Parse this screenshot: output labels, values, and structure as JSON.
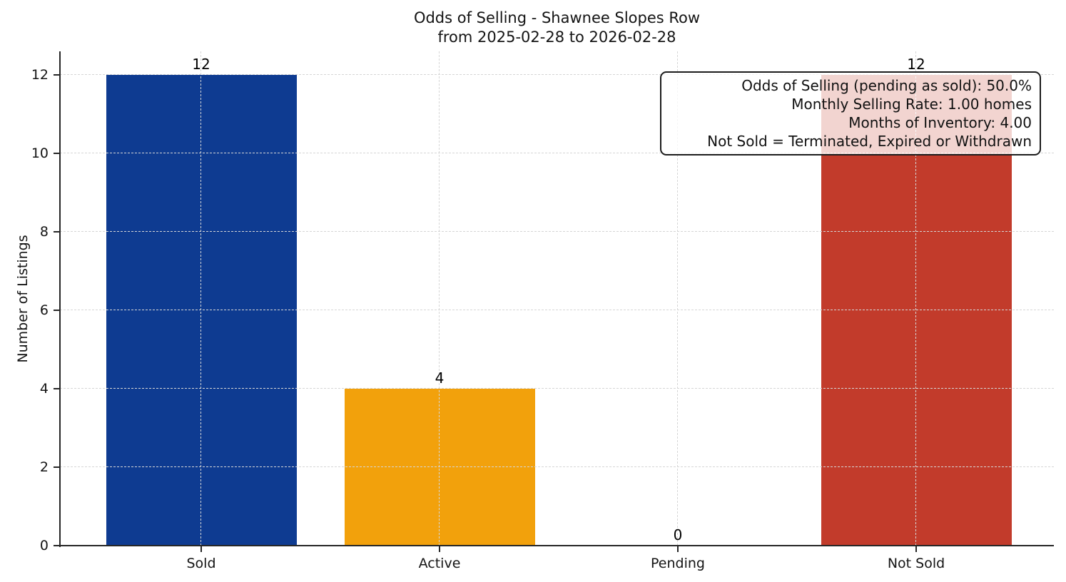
{
  "title": "Odds of Selling - Shawnee Slopes Row",
  "subtitle": "from 2025-02-28 to 2026-02-28",
  "chart_data": {
    "type": "bar",
    "categories": [
      "Sold",
      "Active",
      "Pending",
      "Not Sold"
    ],
    "values": [
      12,
      4,
      0,
      12
    ],
    "value_labels": [
      "12",
      "4",
      "0",
      "12"
    ],
    "bar_colors": [
      "#0e3b91",
      "#f2a10c",
      null,
      "#c23b2b"
    ],
    "title": "Odds of Selling - Shawnee Slopes Row",
    "subtitle": "from 2025-02-28 to 2026-02-28",
    "xlabel": "",
    "ylabel": "Number of Listings",
    "yticks": [
      0,
      2,
      4,
      6,
      8,
      10,
      12
    ],
    "ylim": [
      0,
      12.6
    ],
    "grid": "dashed",
    "grid_color": "#d6d6d6",
    "axis_color": "#262626",
    "legend": "none"
  },
  "annotation": {
    "lines": [
      "Odds of Selling (pending as sold): 50.0%",
      "Monthly Selling Rate: 1.00 homes",
      "Months of Inventory: 4.00",
      "Not Sold = Terminated, Expired or Withdrawn"
    ]
  }
}
